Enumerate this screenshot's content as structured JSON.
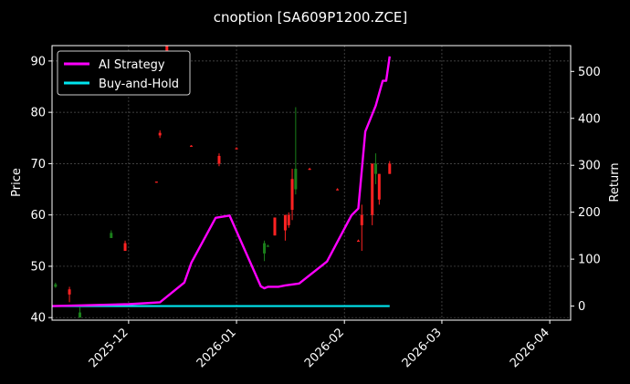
{
  "chart_data": {
    "type": "line",
    "title": "cnoption [SA609P1200.ZCE]",
    "ylabel_left": "Price",
    "ylabel_right": "Return",
    "x_ticks": [
      "2025-12",
      "2026-01",
      "2026-02",
      "2026-03",
      "2026-04"
    ],
    "y_left_ticks": [
      40,
      50,
      60,
      70,
      80,
      90
    ],
    "y_left_range": [
      39.5,
      93
    ],
    "y_right_ticks": [
      0,
      100,
      200,
      300,
      400,
      500
    ],
    "y_right_range": [
      -30,
      555
    ],
    "x_range": [
      "2025-11-09",
      "2026-04-07"
    ],
    "grid": true,
    "legend_position": "top-left",
    "colors": {
      "ai": "#ff00ff",
      "bh": "#00e5ee",
      "up": "#1a7f1a",
      "down": "#ff2222"
    },
    "series": [
      {
        "name": "AI Strategy",
        "dates": [
          "2025-11-09",
          "2025-11-20",
          "2025-12-01",
          "2025-12-10",
          "2025-12-17",
          "2025-12-19",
          "2025-12-26",
          "2025-12-30",
          "2026-01-08",
          "2026-01-09",
          "2026-01-10",
          "2026-01-13",
          "2026-01-15",
          "2026-01-19",
          "2026-01-27",
          "2026-02-03",
          "2026-02-05",
          "2026-02-07",
          "2026-02-10",
          "2026-02-12",
          "2026-02-13",
          "2026-02-14"
        ],
        "values": [
          0,
          2,
          4,
          8,
          50,
          92,
          188,
          193,
          42,
          38,
          41,
          41,
          44,
          48,
          95,
          193,
          208,
          372,
          427,
          480,
          480,
          532
        ]
      },
      {
        "name": "Buy-and-Hold",
        "dates": [
          "2025-11-09",
          "2026-02-14"
        ],
        "values": [
          0,
          0
        ]
      }
    ],
    "ohlc": [
      {
        "date": "2025-11-10",
        "open": 46.5,
        "high": 46.8,
        "low": 45.8,
        "close": 46,
        "dir": "up"
      },
      {
        "date": "2025-11-14",
        "open": 45.5,
        "high": 46,
        "low": 43,
        "close": 44.5,
        "dir": "down"
      },
      {
        "date": "2025-11-17",
        "open": 41,
        "high": 42,
        "low": 40,
        "close": 40,
        "dir": "up"
      },
      {
        "date": "2025-11-26",
        "open": 55.5,
        "high": 57,
        "low": 55.5,
        "close": 56.5,
        "dir": "up"
      },
      {
        "date": "2025-11-30",
        "open": 54.5,
        "high": 55,
        "low": 53,
        "close": 53,
        "dir": "down"
      },
      {
        "date": "2025-12-09",
        "open": 66.5,
        "high": 66.5,
        "low": 66.3,
        "close": 66.3,
        "dir": "down"
      },
      {
        "date": "2025-12-10",
        "open": 76,
        "high": 76.5,
        "low": 75,
        "close": 75.5,
        "dir": "down"
      },
      {
        "date": "2025-12-12",
        "open": 93,
        "high": 93,
        "low": 92,
        "close": 92,
        "dir": "down"
      },
      {
        "date": "2025-12-19",
        "open": 73.5,
        "high": 73.6,
        "low": 73.3,
        "close": 73.4,
        "dir": "down"
      },
      {
        "date": "2025-12-27",
        "open": 71.5,
        "high": 72,
        "low": 69.5,
        "close": 70,
        "dir": "down"
      },
      {
        "date": "2026-01-01",
        "open": 73,
        "high": 73.2,
        "low": 72.8,
        "close": 73,
        "dir": "down"
      },
      {
        "date": "2026-01-09",
        "open": 52.5,
        "high": 55,
        "low": 51,
        "close": 54.5,
        "dir": "up"
      },
      {
        "date": "2026-01-10",
        "open": 54,
        "high": 54.2,
        "low": 53.8,
        "close": 54,
        "dir": "up"
      },
      {
        "date": "2026-01-12",
        "open": 59.5,
        "high": 59.5,
        "low": 56,
        "close": 56,
        "dir": "down"
      },
      {
        "date": "2026-01-15",
        "open": 60,
        "high": 60,
        "low": 55,
        "close": 57,
        "dir": "down"
      },
      {
        "date": "2026-01-16",
        "open": 60,
        "high": 60.5,
        "low": 57.5,
        "close": 58,
        "dir": "down"
      },
      {
        "date": "2026-01-17",
        "open": 67,
        "high": 69,
        "low": 59,
        "close": 61,
        "dir": "down"
      },
      {
        "date": "2026-01-18",
        "open": 65,
        "high": 81,
        "low": 64,
        "close": 69,
        "dir": "up"
      },
      {
        "date": "2026-01-22",
        "open": 69,
        "high": 69.2,
        "low": 68.8,
        "close": 69,
        "dir": "down"
      },
      {
        "date": "2026-01-30",
        "open": 65,
        "high": 65.2,
        "low": 64.8,
        "close": 65,
        "dir": "down"
      },
      {
        "date": "2026-02-05",
        "open": 55,
        "high": 55.2,
        "low": 54.8,
        "close": 55,
        "dir": "down"
      },
      {
        "date": "2026-02-06",
        "open": 60,
        "high": 62,
        "low": 53,
        "close": 58,
        "dir": "down"
      },
      {
        "date": "2026-02-09",
        "open": 70,
        "high": 70,
        "low": 58,
        "close": 60,
        "dir": "down"
      },
      {
        "date": "2026-02-10",
        "open": 68,
        "high": 72,
        "low": 66,
        "close": 70,
        "dir": "up"
      },
      {
        "date": "2026-02-11",
        "open": 68,
        "high": 68,
        "low": 62,
        "close": 63,
        "dir": "down"
      },
      {
        "date": "2026-02-14",
        "open": 70,
        "high": 70.5,
        "low": 68,
        "close": 68,
        "dir": "down"
      }
    ]
  }
}
